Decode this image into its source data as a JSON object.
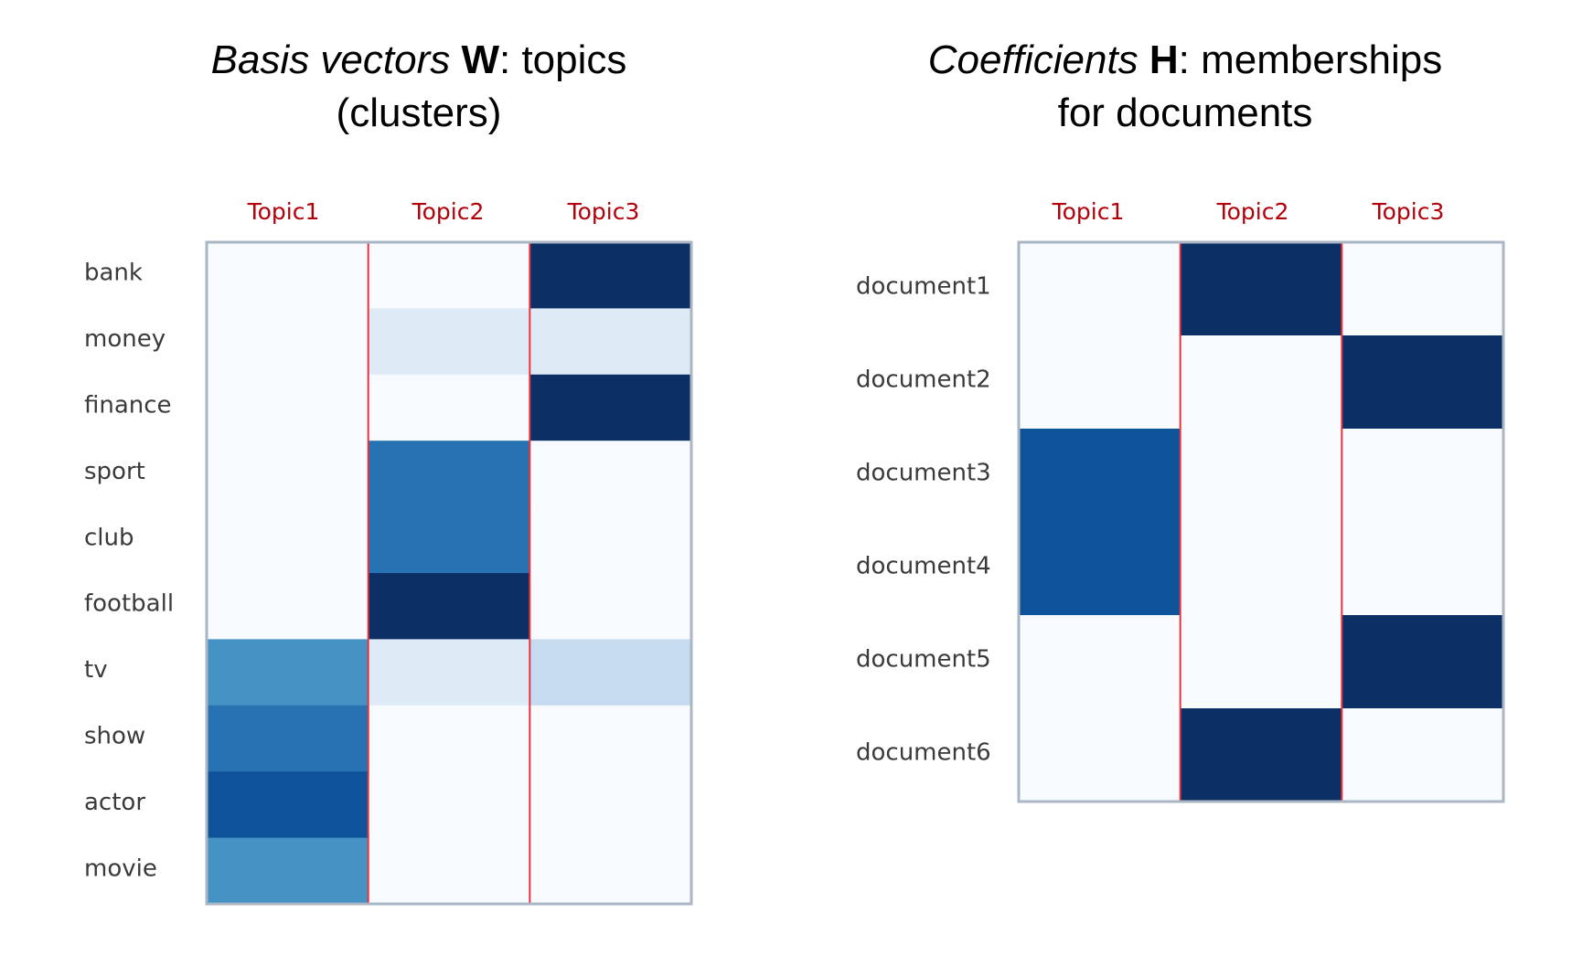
{
  "chart_data": [
    {
      "type": "heatmap",
      "title": {
        "line1": [
          {
            "text": "Basis vectors ",
            "style": "italic"
          },
          {
            "text": "W",
            "style": "bold"
          },
          {
            "text": ": topics",
            "style": "normal"
          }
        ],
        "line2": [
          {
            "text": "(clusters)",
            "style": "normal"
          }
        ]
      },
      "columns": [
        "Topic1",
        "Topic2",
        "Topic3"
      ],
      "rows": [
        "bank",
        "money",
        "finance",
        "sport",
        "club",
        "football",
        "tv",
        "show",
        "actor",
        "movie"
      ],
      "values": [
        [
          0.0,
          0.0,
          1.0
        ],
        [
          0.0,
          0.1,
          0.1
        ],
        [
          0.0,
          0.0,
          1.0
        ],
        [
          0.0,
          0.7,
          0.0
        ],
        [
          0.0,
          0.7,
          0.0
        ],
        [
          0.0,
          1.0,
          0.0
        ],
        [
          0.6,
          0.1,
          0.2
        ],
        [
          0.7,
          0.0,
          0.0
        ],
        [
          0.85,
          0.0,
          0.0
        ],
        [
          0.6,
          0.0,
          0.0
        ]
      ],
      "colorscale": "Blues",
      "separator_color": "#e8323c",
      "border_color": "#a9b6c3"
    },
    {
      "type": "heatmap",
      "title": {
        "line1": [
          {
            "text": "Coefficients ",
            "style": "italic"
          },
          {
            "text": "H",
            "style": "bold"
          },
          {
            "text": ": memberships",
            "style": "normal"
          }
        ],
        "line2": [
          {
            "text": "for documents",
            "style": "normal"
          }
        ]
      },
      "columns": [
        "Topic1",
        "Topic2",
        "Topic3"
      ],
      "rows": [
        "document1",
        "document2",
        "document3",
        "document4",
        "document5",
        "document6"
      ],
      "values": [
        [
          0.0,
          1.0,
          0.0
        ],
        [
          0.0,
          0.0,
          1.0
        ],
        [
          0.85,
          0.0,
          0.0
        ],
        [
          0.85,
          0.0,
          0.0
        ],
        [
          0.0,
          0.0,
          1.0
        ],
        [
          0.0,
          1.0,
          0.0
        ]
      ],
      "colorscale": "Blues",
      "separator_color": "#e8323c",
      "border_color": "#a9b6c3"
    }
  ]
}
